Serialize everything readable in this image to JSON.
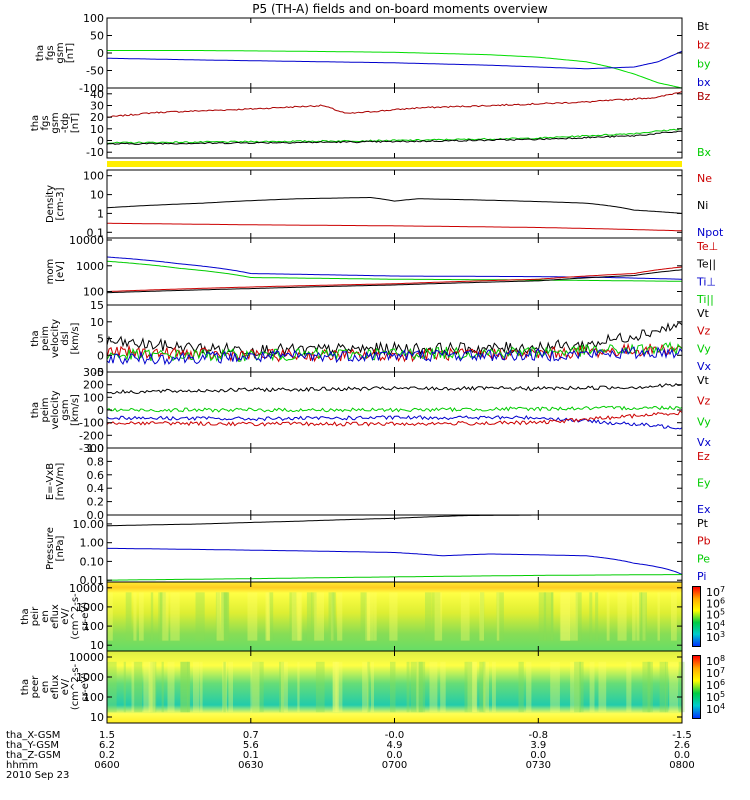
{
  "title": "P5 (TH-A) fields and on-board moments overview",
  "footer": {
    "rows": [
      {
        "label": "tha_X-GSM",
        "values": [
          "1.5",
          "0.7",
          "-0.0",
          "-0.8",
          "-1.5"
        ]
      },
      {
        "label": "tha_Y-GSM",
        "values": [
          "6.2",
          "5.6",
          "4.9",
          "3.9",
          "2.6"
        ]
      },
      {
        "label": "tha_Z-GSM",
        "values": [
          "0.2",
          "0.1",
          "0.0",
          "0.0",
          "0.0"
        ]
      },
      {
        "label": "hhmm",
        "values": [
          "0600",
          "0630",
          "0700",
          "0730",
          "0800"
        ]
      }
    ],
    "date": "2010 Sep 23"
  },
  "chart_data": {
    "type": "line",
    "title": "P5 (TH-A) fields and on-board moments overview",
    "x_range": [
      "0600",
      "0800"
    ],
    "x_ticks": [
      "0600",
      "0630",
      "0700",
      "0730",
      "0800"
    ],
    "x_unit": "hhmm (UT), 2010 Sep 23",
    "panels": [
      {
        "id": "fgs_gsm",
        "ylabel": [
          "tha",
          "fgs",
          "gsm",
          "[nT]"
        ],
        "ylim": [
          -100,
          100
        ],
        "yticks": [
          "100",
          "50",
          "0",
          "-50",
          "-100"
        ],
        "legend": [
          {
            "name": "Bt",
            "color": "#000000"
          },
          {
            "name": "bz",
            "color": "#cc0000"
          },
          {
            "name": "by",
            "color": "#00cc00"
          },
          {
            "name": "bx",
            "color": "#0000cc"
          }
        ],
        "series": [
          {
            "name": "by",
            "color": "#00dd00",
            "x": [
              "0600",
              "0620",
              "0640",
              "0700",
              "0720",
              "0730",
              "0740",
              "0745",
              "0750",
              "0755",
              "0800"
            ],
            "values": [
              7,
              7,
              5,
              2,
              -5,
              -12,
              -25,
              -40,
              -60,
              -85,
              -100
            ]
          },
          {
            "name": "bx",
            "color": "#0000cc",
            "x": [
              "0600",
              "0620",
              "0640",
              "0700",
              "0720",
              "0740",
              "0750",
              "0755",
              "0800"
            ],
            "values": [
              -15,
              -20,
              -24,
              -28,
              -35,
              -45,
              -40,
              -25,
              5
            ]
          }
        ]
      },
      {
        "id": "fgs_gsm_tdp",
        "ylabel": [
          "tha",
          "fgs",
          "gsm",
          "-tdp",
          "[nT]"
        ],
        "ylim": [
          -15,
          45
        ],
        "yticks": [
          "40",
          "30",
          "20",
          "10",
          "0",
          "-10"
        ],
        "legend": [
          {
            "name": "Bz",
            "color": "#aa0000"
          },
          {
            "name": "Bx",
            "color": "#00cc00"
          }
        ],
        "series": [
          {
            "name": "Bz",
            "color": "#aa0000",
            "x": [
              "0600",
              "0610",
              "0630",
              "0645",
              "0650",
              "0705",
              "0720",
              "0740",
              "0755",
              "0800"
            ],
            "values": [
              20,
              24,
              27,
              30,
              23,
              28,
              30,
              33,
              37,
              42
            ]
          },
          {
            "name": "Bx",
            "color": "#00cc00",
            "x": [
              "0600",
              "0630",
              "0700",
              "0730",
              "0750",
              "0800"
            ],
            "values": [
              -2,
              -1,
              0,
              2,
              6,
              10
            ]
          },
          {
            "name": "",
            "color": "#000000",
            "x": [
              "0600",
              "0630",
              "0700",
              "0730",
              "0750",
              "0800"
            ],
            "values": [
              -3,
              -2,
              -1,
              1,
              4,
              8
            ]
          }
        ]
      },
      {
        "id": "density",
        "ylabel": [
          "Density",
          "[cm-3]"
        ],
        "log": true,
        "ylim": [
          0.05,
          200
        ],
        "yticks": [
          "100",
          "10",
          "1",
          "0.1"
        ],
        "legend": [
          {
            "name": "Ne",
            "color": "#cc0000"
          },
          {
            "name": "Ni",
            "color": "#000000"
          },
          {
            "name": "Npot",
            "color": "#0000cc"
          }
        ],
        "series": [
          {
            "name": "Ni",
            "color": "#000000",
            "x": [
              "0600",
              "0620",
              "0640",
              "0655",
              "0700",
              "0705",
              "0720",
              "0740",
              "0750",
              "0800"
            ],
            "values": [
              2.0,
              3.5,
              6.0,
              7.0,
              4.5,
              6.0,
              5.0,
              3.5,
              1.5,
              1.0
            ]
          },
          {
            "name": "Ne",
            "color": "#cc0000",
            "x": [
              "0600",
              "0630",
              "0700",
              "0730",
              "0800"
            ],
            "values": [
              0.3,
              0.25,
              0.22,
              0.18,
              0.12
            ]
          }
        ]
      },
      {
        "id": "temperature",
        "ylabel": [
          "mom",
          "[eV]"
        ],
        "log": true,
        "ylim": [
          30,
          12000
        ],
        "yticks": [
          "10000",
          "1000",
          "100"
        ],
        "legend": [
          {
            "name": "Te⊥",
            "color": "#cc0000"
          },
          {
            "name": "Te||",
            "color": "#000000"
          },
          {
            "name": "Ti⊥",
            "color": "#0000cc"
          },
          {
            "name": "Ti||",
            "color": "#00cc00"
          }
        ],
        "series": [
          {
            "name": "Ti⊥",
            "color": "#0000cc",
            "x": [
              "0600",
              "0615",
              "0630",
              "0700",
              "0730",
              "0745",
              "0800"
            ],
            "values": [
              2200,
              1200,
              500,
              400,
              380,
              350,
              300
            ]
          },
          {
            "name": "Ti||",
            "color": "#00cc00",
            "x": [
              "0600",
              "0615",
              "0630",
              "0700",
              "0730",
              "0800"
            ],
            "values": [
              1500,
              800,
              350,
              300,
              280,
              250
            ]
          },
          {
            "name": "Te⊥",
            "color": "#cc0000",
            "x": [
              "0600",
              "0630",
              "0700",
              "0730",
              "0750",
              "0800"
            ],
            "values": [
              100,
              150,
              200,
              300,
              500,
              900
            ]
          },
          {
            "name": "Te||",
            "color": "#000000",
            "x": [
              "0600",
              "0630",
              "0700",
              "0730",
              "0750",
              "0800"
            ],
            "values": [
              90,
              130,
              180,
              260,
              420,
              700
            ]
          }
        ]
      },
      {
        "id": "peim_velocity_dsl",
        "ylabel": [
          "tha",
          "peim",
          "velocity",
          "dsl",
          "[km/s]"
        ],
        "ylim": [
          -5,
          15
        ],
        "yticks": [
          "15",
          "10",
          "5",
          "0",
          "-5"
        ],
        "legend": [
          {
            "name": "Vt",
            "color": "#000000"
          },
          {
            "name": "Vz",
            "color": "#cc0000"
          },
          {
            "name": "Vy",
            "color": "#00cc00"
          },
          {
            "name": "Vx",
            "color": "#0000cc"
          }
        ],
        "series": [
          {
            "name": "Vt",
            "color": "#000000",
            "x": [
              "0600",
              "0620",
              "0640",
              "0700",
              "0720",
              "0740",
              "0750",
              "0800"
            ],
            "values": [
              4,
              2,
              1.5,
              2,
              2,
              3,
              6,
              9
            ]
          },
          {
            "name": "Vz",
            "color": "#cc0000",
            "x": [
              "0600",
              "0630",
              "0700",
              "0730",
              "0800"
            ],
            "values": [
              1,
              0,
              0,
              0.5,
              2
            ]
          },
          {
            "name": "Vy",
            "color": "#00cc00",
            "x": [
              "0600",
              "0630",
              "0700",
              "0730",
              "0800"
            ],
            "values": [
              0,
              0,
              0.5,
              1,
              2
            ]
          },
          {
            "name": "Vx",
            "color": "#0000cc",
            "x": [
              "0600",
              "0630",
              "0700",
              "0730",
              "0800"
            ],
            "values": [
              -1,
              -0.5,
              0,
              0,
              1
            ]
          }
        ]
      },
      {
        "id": "peim_velocity_gsm",
        "ylabel": [
          "tha",
          "peim",
          "velocity",
          "gsm",
          "[km/s]"
        ],
        "ylim": [
          -300,
          300
        ],
        "yticks": [
          "300",
          "200",
          "100",
          "0",
          "-100",
          "-200",
          "-300"
        ],
        "legend": [
          {
            "name": "Vt",
            "color": "#000000"
          },
          {
            "name": "Vz",
            "color": "#cc0000"
          },
          {
            "name": "Vy",
            "color": "#00cc00"
          },
          {
            "name": "Vx",
            "color": "#0000cc"
          }
        ],
        "series": [
          {
            "name": "Vt",
            "color": "#000000",
            "x": [
              "0600",
              "0630",
              "0700",
              "0730",
              "0750",
              "0800"
            ],
            "values": [
              140,
              160,
              170,
              170,
              180,
              200
            ]
          },
          {
            "name": "Vy",
            "color": "#00cc00",
            "x": [
              "0600",
              "0630",
              "0700",
              "0730",
              "0800"
            ],
            "values": [
              0,
              0,
              0,
              10,
              20
            ]
          },
          {
            "name": "Vx",
            "color": "#0000cc",
            "x": [
              "0600",
              "0630",
              "0700",
              "0730",
              "0800"
            ],
            "values": [
              -60,
              -70,
              -60,
              -60,
              -140
            ]
          },
          {
            "name": "Vz",
            "color": "#cc0000",
            "x": [
              "0600",
              "0630",
              "0700",
              "0730",
              "0800"
            ],
            "values": [
              -100,
              -110,
              -110,
              -100,
              -20
            ]
          }
        ]
      },
      {
        "id": "efield",
        "ylabel": [
          "E=-VxB",
          "[mV/m]"
        ],
        "ylim": [
          0,
          1
        ],
        "yticks": [
          "1.0",
          "0.8",
          "0.6",
          "0.4",
          "0.2",
          "0.0"
        ],
        "legend": [
          {
            "name": "Ez",
            "color": "#cc0000"
          },
          {
            "name": "Ey",
            "color": "#00cc00"
          },
          {
            "name": "Ex",
            "color": "#0000cc"
          }
        ],
        "series": []
      },
      {
        "id": "pressure",
        "ylabel": [
          "Pressure",
          "[nPa]"
        ],
        "log": true,
        "ylim": [
          0.008,
          30
        ],
        "yticks": [
          "10.00",
          "1.00",
          "0.10",
          "0.01"
        ],
        "legend": [
          {
            "name": "Pt",
            "color": "#000000"
          },
          {
            "name": "Pb",
            "color": "#cc0000"
          },
          {
            "name": "Pe",
            "color": "#00cc00"
          },
          {
            "name": "Pi",
            "color": "#0000cc"
          }
        ],
        "series": [
          {
            "name": "Pt",
            "color": "#000000",
            "x": [
              "0600",
              "0620",
              "0640",
              "0700",
              "0715",
              "0730"
            ],
            "values": [
              8,
              10,
              14,
              20,
              28,
              30
            ]
          },
          {
            "name": "Pi",
            "color": "#0000cc",
            "x": [
              "0600",
              "0630",
              "0700",
              "0710",
              "0720",
              "0740",
              "0750",
              "0800"
            ],
            "values": [
              0.5,
              0.4,
              0.3,
              0.2,
              0.25,
              0.2,
              0.08,
              0.02
            ]
          },
          {
            "name": "Pe",
            "color": "#00cc00",
            "x": [
              "0600",
              "0630",
              "0700",
              "0730",
              "0800"
            ],
            "values": [
              0.01,
              0.012,
              0.015,
              0.018,
              0.02
            ]
          }
        ]
      },
      {
        "id": "peir_spectrogram",
        "type": "heatmap",
        "ylabel": [
          "tha",
          "peir",
          "en",
          "eflux",
          "eV/",
          "(cm^2-s-",
          "sr-eV)"
        ],
        "log": true,
        "ylim": [
          5,
          20000
        ],
        "yticks": [
          "10000",
          "1000",
          "100",
          "10"
        ],
        "colorbar_ticks": [
          "10^7",
          "10^6",
          "10^5",
          "10^4",
          "10^3"
        ],
        "colors": [
          "#ff0000",
          "#ffaa00",
          "#ffff00",
          "#00cc44",
          "#00cccc",
          "#0033ff"
        ]
      },
      {
        "id": "peer_spectrogram",
        "type": "heatmap",
        "ylabel": [
          "tha",
          "peer",
          "en",
          "eflux",
          "eV/",
          "(cm^2-s-",
          "sr-eV)"
        ],
        "log": true,
        "ylim": [
          5,
          20000
        ],
        "yticks": [
          "10000",
          "1000",
          "100",
          "10"
        ],
        "colorbar_ticks": [
          "10^8",
          "10^7",
          "10^6",
          "10^5",
          "10^4"
        ],
        "colors": [
          "#ff0000",
          "#ffaa00",
          "#ffff00",
          "#00cc44",
          "#00cccc",
          "#0033ff"
        ]
      }
    ]
  }
}
